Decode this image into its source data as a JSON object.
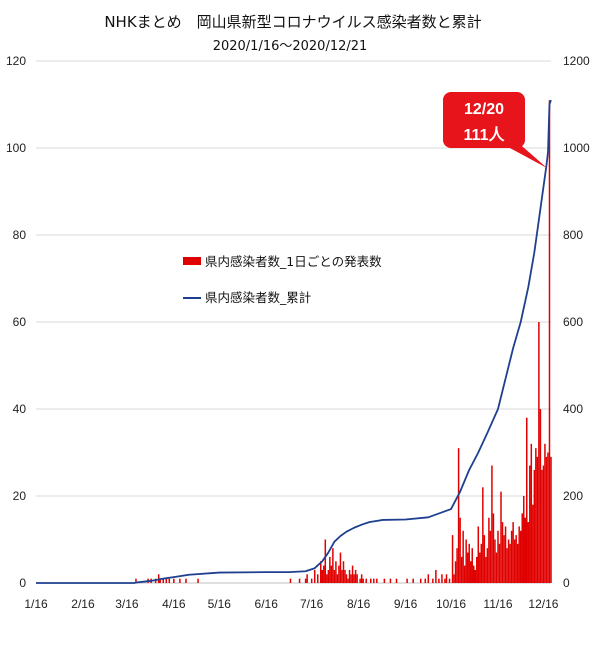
{
  "chart_data": {
    "type": "bar+line",
    "title": "NHKまとめ　岡山県新型コロナウイルス感染者数と累計",
    "subtitle": "2020/1/16～2020/12/21",
    "x_axis": {
      "tick_labels": [
        "1/16",
        "2/16",
        "3/16",
        "4/16",
        "5/16",
        "6/16",
        "7/16",
        "8/16",
        "9/16",
        "10/16",
        "11/16",
        "12/16"
      ],
      "start_date": "2020-01-16",
      "end_date": "2020-12-21"
    },
    "y_left": {
      "ylim": [
        0,
        120
      ],
      "ticks": [
        0,
        20,
        40,
        60,
        80,
        100,
        120
      ]
    },
    "y_right": {
      "ylim": [
        0,
        1200
      ],
      "ticks": [
        0,
        200,
        400,
        600,
        800,
        1000,
        1200
      ]
    },
    "grid": "horizontal",
    "legend": {
      "placement": "center-left",
      "entries": [
        "県内感染者数_1日ごとの発表数",
        "県内感染者数_累計"
      ]
    },
    "colors": {
      "daily": "#e00000",
      "cumulative": "#1f3f8f",
      "grid": "#d9d9d9",
      "callout": "#e8141b"
    },
    "annotation": {
      "date": "2020-12-20",
      "line1": "12/20",
      "line2": "111人"
    },
    "series": [
      {
        "name": "県内感染者数_1日ごとの発表数",
        "type": "bar",
        "axis": "left",
        "points": [
          [
            "2020-03-22",
            1
          ],
          [
            "2020-03-30",
            1
          ],
          [
            "2020-04-01",
            1
          ],
          [
            "2020-04-04",
            1
          ],
          [
            "2020-04-06",
            2
          ],
          [
            "2020-04-07",
            1
          ],
          [
            "2020-04-09",
            1
          ],
          [
            "2020-04-11",
            1
          ],
          [
            "2020-04-13",
            1
          ],
          [
            "2020-04-16",
            1
          ],
          [
            "2020-04-20",
            1
          ],
          [
            "2020-04-24",
            1
          ],
          [
            "2020-05-02",
            1
          ],
          [
            "2020-07-02",
            1
          ],
          [
            "2020-07-08",
            1
          ],
          [
            "2020-07-12",
            1
          ],
          [
            "2020-07-13",
            2
          ],
          [
            "2020-07-16",
            1
          ],
          [
            "2020-07-18",
            3
          ],
          [
            "2020-07-20",
            2
          ],
          [
            "2020-07-22",
            5
          ],
          [
            "2020-07-23",
            3
          ],
          [
            "2020-07-24",
            4
          ],
          [
            "2020-07-25",
            10
          ],
          [
            "2020-07-26",
            2
          ],
          [
            "2020-07-27",
            3
          ],
          [
            "2020-07-28",
            6
          ],
          [
            "2020-07-29",
            4
          ],
          [
            "2020-07-30",
            8
          ],
          [
            "2020-07-31",
            3
          ],
          [
            "2020-08-01",
            5
          ],
          [
            "2020-08-02",
            2
          ],
          [
            "2020-08-03",
            4
          ],
          [
            "2020-08-04",
            7
          ],
          [
            "2020-08-05",
            3
          ],
          [
            "2020-08-06",
            5
          ],
          [
            "2020-08-07",
            3
          ],
          [
            "2020-08-08",
            2
          ],
          [
            "2020-08-09",
            1
          ],
          [
            "2020-08-10",
            3
          ],
          [
            "2020-08-11",
            2
          ],
          [
            "2020-08-12",
            4
          ],
          [
            "2020-08-13",
            2
          ],
          [
            "2020-08-14",
            3
          ],
          [
            "2020-08-15",
            2
          ],
          [
            "2020-08-17",
            1
          ],
          [
            "2020-08-18",
            2
          ],
          [
            "2020-08-19",
            1
          ],
          [
            "2020-08-21",
            1
          ],
          [
            "2020-08-24",
            1
          ],
          [
            "2020-08-26",
            1
          ],
          [
            "2020-08-28",
            1
          ],
          [
            "2020-09-02",
            1
          ],
          [
            "2020-09-06",
            1
          ],
          [
            "2020-09-10",
            1
          ],
          [
            "2020-09-17",
            1
          ],
          [
            "2020-09-21",
            1
          ],
          [
            "2020-09-26",
            1
          ],
          [
            "2020-09-29",
            1
          ],
          [
            "2020-10-01",
            2
          ],
          [
            "2020-10-04",
            1
          ],
          [
            "2020-10-06",
            3
          ],
          [
            "2020-10-08",
            1
          ],
          [
            "2020-10-10",
            2
          ],
          [
            "2020-10-12",
            1
          ],
          [
            "2020-10-13",
            2
          ],
          [
            "2020-10-15",
            1
          ],
          [
            "2020-10-17",
            11
          ],
          [
            "2020-10-18",
            2
          ],
          [
            "2020-10-19",
            5
          ],
          [
            "2020-10-20",
            8
          ],
          [
            "2020-10-21",
            31
          ],
          [
            "2020-10-22",
            15
          ],
          [
            "2020-10-23",
            6
          ],
          [
            "2020-10-24",
            12
          ],
          [
            "2020-10-25",
            4
          ],
          [
            "2020-10-26",
            10
          ],
          [
            "2020-10-27",
            7
          ],
          [
            "2020-10-28",
            9
          ],
          [
            "2020-10-29",
            5
          ],
          [
            "2020-10-30",
            8
          ],
          [
            "2020-10-31",
            4
          ],
          [
            "2020-11-01",
            3
          ],
          [
            "2020-11-02",
            6
          ],
          [
            "2020-11-03",
            13
          ],
          [
            "2020-11-04",
            7
          ],
          [
            "2020-11-05",
            9
          ],
          [
            "2020-11-06",
            22
          ],
          [
            "2020-11-07",
            11
          ],
          [
            "2020-11-08",
            6
          ],
          [
            "2020-11-09",
            8
          ],
          [
            "2020-11-10",
            15
          ],
          [
            "2020-11-11",
            12
          ],
          [
            "2020-11-12",
            27
          ],
          [
            "2020-11-13",
            16
          ],
          [
            "2020-11-14",
            10
          ],
          [
            "2020-11-15",
            7
          ],
          [
            "2020-11-16",
            12
          ],
          [
            "2020-11-17",
            9
          ],
          [
            "2020-11-18",
            21
          ],
          [
            "2020-11-19",
            14
          ],
          [
            "2020-11-20",
            11
          ],
          [
            "2020-11-21",
            13
          ],
          [
            "2020-11-22",
            8
          ],
          [
            "2020-11-23",
            10
          ],
          [
            "2020-11-24",
            9
          ],
          [
            "2020-11-25",
            12
          ],
          [
            "2020-11-26",
            14
          ],
          [
            "2020-11-27",
            10
          ],
          [
            "2020-11-28",
            11
          ],
          [
            "2020-11-29",
            9
          ],
          [
            "2020-11-30",
            13
          ],
          [
            "2020-12-01",
            12
          ],
          [
            "2020-12-02",
            16
          ],
          [
            "2020-12-03",
            20
          ],
          [
            "2020-12-04",
            15
          ],
          [
            "2020-12-05",
            38
          ],
          [
            "2020-12-06",
            14
          ],
          [
            "2020-12-07",
            27
          ],
          [
            "2020-12-08",
            32
          ],
          [
            "2020-12-09",
            18
          ],
          [
            "2020-12-10",
            26
          ],
          [
            "2020-12-11",
            31
          ],
          [
            "2020-12-12",
            29
          ],
          [
            "2020-12-13",
            60
          ],
          [
            "2020-12-14",
            40
          ],
          [
            "2020-12-15",
            26
          ],
          [
            "2020-12-16",
            27
          ],
          [
            "2020-12-17",
            32
          ],
          [
            "2020-12-18",
            29
          ],
          [
            "2020-12-19",
            30
          ],
          [
            "2020-12-20",
            111
          ],
          [
            "2020-12-21",
            29
          ]
        ]
      },
      {
        "name": "県内感染者数_累計",
        "type": "line",
        "axis": "right",
        "points": [
          [
            "2020-01-16",
            0
          ],
          [
            "2020-03-21",
            0
          ],
          [
            "2020-03-22",
            1
          ],
          [
            "2020-04-01",
            5
          ],
          [
            "2020-04-09",
            10
          ],
          [
            "2020-04-17",
            14
          ],
          [
            "2020-04-26",
            19
          ],
          [
            "2020-05-16",
            24
          ],
          [
            "2020-06-16",
            25
          ],
          [
            "2020-07-01",
            25
          ],
          [
            "2020-07-12",
            27
          ],
          [
            "2020-07-18",
            34
          ],
          [
            "2020-07-23",
            50
          ],
          [
            "2020-07-27",
            70
          ],
          [
            "2020-07-31",
            95
          ],
          [
            "2020-08-04",
            108
          ],
          [
            "2020-08-08",
            118
          ],
          [
            "2020-08-13",
            127
          ],
          [
            "2020-08-18",
            134
          ],
          [
            "2020-08-23",
            140
          ],
          [
            "2020-09-01",
            145
          ],
          [
            "2020-09-16",
            146
          ],
          [
            "2020-10-01",
            151
          ],
          [
            "2020-10-16",
            170
          ],
          [
            "2020-10-22",
            210
          ],
          [
            "2020-10-28",
            260
          ],
          [
            "2020-11-03",
            300
          ],
          [
            "2020-11-09",
            345
          ],
          [
            "2020-11-16",
            400
          ],
          [
            "2020-11-21",
            470
          ],
          [
            "2020-11-26",
            540
          ],
          [
            "2020-12-01",
            600
          ],
          [
            "2020-12-06",
            680
          ],
          [
            "2020-12-10",
            760
          ],
          [
            "2020-12-14",
            860
          ],
          [
            "2020-12-18",
            960
          ],
          [
            "2020-12-19",
            990
          ],
          [
            "2020-12-20",
            1101
          ],
          [
            "2020-12-21",
            1110
          ]
        ]
      }
    ]
  }
}
